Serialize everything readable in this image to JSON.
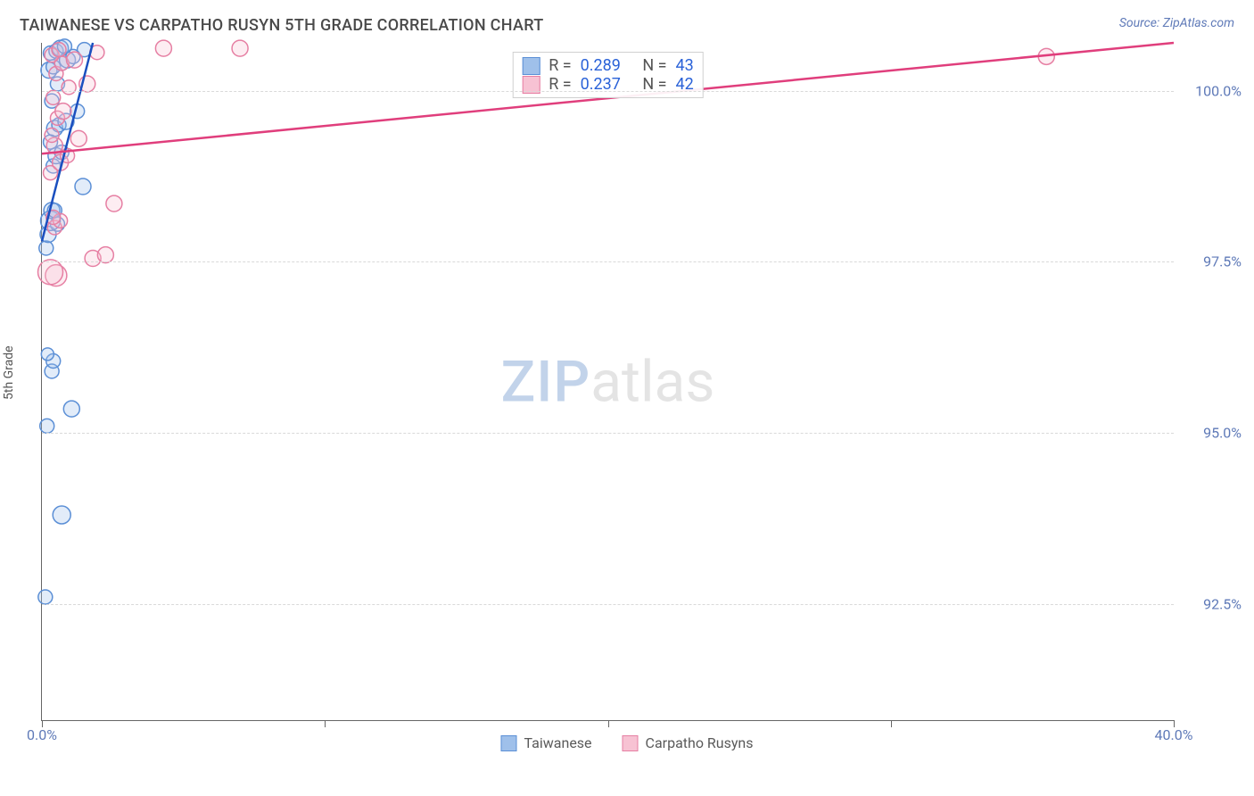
{
  "header": {
    "title": "TAIWANESE VS CARPATHO RUSYN 5TH GRADE CORRELATION CHART",
    "source_label": "Source: ZipAtlas.com"
  },
  "chart": {
    "type": "scatter-with-regression",
    "y_axis_label": "5th Grade",
    "xlim": [
      0.0,
      40.0
    ],
    "ylim": [
      90.8,
      100.7
    ],
    "x_ticks": [
      0.0,
      20.0,
      40.0
    ],
    "x_tick_labels": [
      "0.0%",
      "",
      "40.0%"
    ],
    "y_ticks": [
      92.5,
      95.0,
      97.5,
      100.0
    ],
    "y_tick_labels": [
      "92.5%",
      "95.0%",
      "97.5%",
      "100.0%"
    ],
    "x_tick_minor_count": 3,
    "grid_color": "#d9d9d9",
    "axis_color": "#666666",
    "tick_label_color": "#5f7ab8",
    "background_color": "#ffffff",
    "point_radius": 8,
    "point_stroke_width": 1.5,
    "point_fill_opacity": 0.3,
    "line_width": 2.5,
    "watermark": {
      "zip": "ZIP",
      "atlas": "atlas"
    },
    "series": [
      {
        "key": "taiwanese",
        "label": "Taiwanese",
        "color_stroke": "#5b8fd6",
        "color_fill": "#9fc0ea",
        "line_color": "#1a4fbf",
        "r_value": "0.289",
        "n_value": "43",
        "regression": {
          "x1": 0.0,
          "y1": 97.8,
          "x2": 1.8,
          "y2": 100.7
        },
        "points": [
          {
            "x": 0.12,
            "y": 92.6,
            "r": 8
          },
          {
            "x": 0.7,
            "y": 93.8,
            "r": 10
          },
          {
            "x": 0.18,
            "y": 95.1,
            "r": 8
          },
          {
            "x": 1.05,
            "y": 95.35,
            "r": 9
          },
          {
            "x": 0.35,
            "y": 95.9,
            "r": 8
          },
          {
            "x": 0.4,
            "y": 96.05,
            "r": 8
          },
          {
            "x": 0.2,
            "y": 96.15,
            "r": 7
          },
          {
            "x": 0.15,
            "y": 97.7,
            "r": 8
          },
          {
            "x": 0.22,
            "y": 97.9,
            "r": 9
          },
          {
            "x": 0.55,
            "y": 98.05,
            "r": 8
          },
          {
            "x": 0.3,
            "y": 98.1,
            "r": 11
          },
          {
            "x": 0.35,
            "y": 98.25,
            "r": 9
          },
          {
            "x": 0.45,
            "y": 98.25,
            "r": 8
          },
          {
            "x": 1.45,
            "y": 98.6,
            "r": 9
          },
          {
            "x": 0.4,
            "y": 98.9,
            "r": 8
          },
          {
            "x": 0.5,
            "y": 99.05,
            "r": 9
          },
          {
            "x": 0.7,
            "y": 99.1,
            "r": 8
          },
          {
            "x": 0.3,
            "y": 99.25,
            "r": 8
          },
          {
            "x": 0.45,
            "y": 99.45,
            "r": 9
          },
          {
            "x": 0.6,
            "y": 99.5,
            "r": 8
          },
          {
            "x": 0.85,
            "y": 99.55,
            "r": 9
          },
          {
            "x": 1.25,
            "y": 99.7,
            "r": 8
          },
          {
            "x": 0.35,
            "y": 99.85,
            "r": 8
          },
          {
            "x": 0.55,
            "y": 100.1,
            "r": 8
          },
          {
            "x": 0.25,
            "y": 100.3,
            "r": 9
          },
          {
            "x": 0.4,
            "y": 100.35,
            "r": 8
          },
          {
            "x": 0.7,
            "y": 100.4,
            "r": 8
          },
          {
            "x": 0.9,
            "y": 100.45,
            "r": 9
          },
          {
            "x": 1.1,
            "y": 100.5,
            "r": 8
          },
          {
            "x": 0.3,
            "y": 100.55,
            "r": 8
          },
          {
            "x": 0.5,
            "y": 100.58,
            "r": 8
          },
          {
            "x": 1.5,
            "y": 100.6,
            "r": 8
          },
          {
            "x": 0.65,
            "y": 100.62,
            "r": 9
          },
          {
            "x": 0.8,
            "y": 100.65,
            "r": 8
          }
        ]
      },
      {
        "key": "carpatho",
        "label": "Carpatho Rusyns",
        "color_stroke": "#einconce",
        "color_stroke_fix": "#e67fa3",
        "color_fill": "#f7c2d3",
        "line_color": "#e03e7c",
        "r_value": "0.237",
        "n_value": "42",
        "regression": {
          "x1": 0.0,
          "y1": 99.08,
          "x2": 40.0,
          "y2": 100.7
        },
        "points": [
          {
            "x": 0.5,
            "y": 97.3,
            "r": 12
          },
          {
            "x": 0.3,
            "y": 97.35,
            "r": 14
          },
          {
            "x": 1.8,
            "y": 97.55,
            "r": 9
          },
          {
            "x": 2.25,
            "y": 97.6,
            "r": 9
          },
          {
            "x": 0.45,
            "y": 98.0,
            "r": 8
          },
          {
            "x": 0.65,
            "y": 98.1,
            "r": 8
          },
          {
            "x": 0.4,
            "y": 98.15,
            "r": 8
          },
          {
            "x": 2.55,
            "y": 98.35,
            "r": 9
          },
          {
            "x": 0.3,
            "y": 98.8,
            "r": 8
          },
          {
            "x": 0.65,
            "y": 98.95,
            "r": 9
          },
          {
            "x": 0.9,
            "y": 99.05,
            "r": 8
          },
          {
            "x": 0.45,
            "y": 99.2,
            "r": 9
          },
          {
            "x": 1.3,
            "y": 99.3,
            "r": 9
          },
          {
            "x": 0.35,
            "y": 99.35,
            "r": 8
          },
          {
            "x": 0.55,
            "y": 99.6,
            "r": 8
          },
          {
            "x": 0.75,
            "y": 99.7,
            "r": 9
          },
          {
            "x": 0.4,
            "y": 99.9,
            "r": 8
          },
          {
            "x": 0.95,
            "y": 100.05,
            "r": 8
          },
          {
            "x": 1.6,
            "y": 100.1,
            "r": 9
          },
          {
            "x": 0.5,
            "y": 100.25,
            "r": 8
          },
          {
            "x": 0.7,
            "y": 100.4,
            "r": 8
          },
          {
            "x": 1.15,
            "y": 100.45,
            "r": 9
          },
          {
            "x": 0.35,
            "y": 100.52,
            "r": 8
          },
          {
            "x": 1.95,
            "y": 100.56,
            "r": 8
          },
          {
            "x": 0.6,
            "y": 100.6,
            "r": 8
          },
          {
            "x": 4.3,
            "y": 100.62,
            "r": 9
          },
          {
            "x": 7.0,
            "y": 100.62,
            "r": 9
          },
          {
            "x": 35.5,
            "y": 100.5,
            "r": 9
          }
        ]
      }
    ]
  }
}
